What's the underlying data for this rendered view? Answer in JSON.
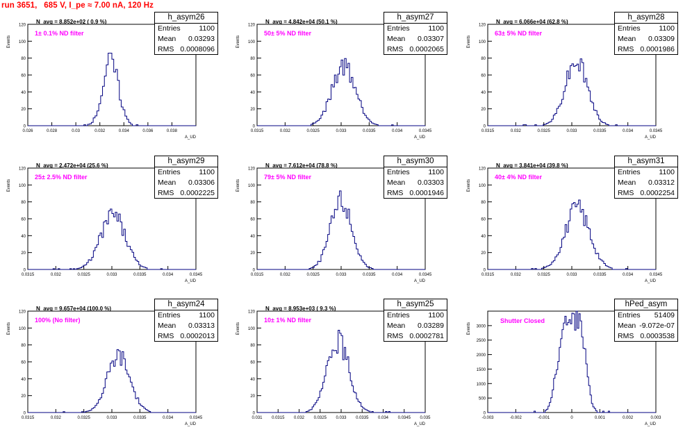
{
  "header": {
    "run_title": "run 3651,   685 V, I_pe ≈ 7.00 nA, 120 Hz"
  },
  "axis_labels": {
    "ylabel": "Events",
    "xlabel": "A_UD"
  },
  "colors": {
    "histogram": "#000080",
    "filter_text": "#ff00ff",
    "title_text": "#ff0000"
  },
  "chart_data": [
    {
      "type": "bar",
      "name": "h_asym26",
      "entries": "1100",
      "mean": "0.03293",
      "rms": "0.0008096",
      "n_avg": "N_avg = 8.852e+02 ( 0.9 %)",
      "filter": "1± 0.1% ND filter",
      "xlim": [
        0.026,
        0.04
      ],
      "ylim": [
        0,
        120
      ],
      "x_ticks": [
        "0.026",
        "0.028",
        "0.03",
        "0.032",
        "0.034",
        "0.036",
        "0.038"
      ],
      "y_ticks": [
        "0",
        "20",
        "40",
        "60",
        "80",
        "100",
        "120"
      ],
      "peak_x": 0.0329,
      "sigma": 0.00065,
      "peak_y": 77,
      "bins": 90,
      "seed": 26
    },
    {
      "type": "bar",
      "name": "h_asym27",
      "entries": "1100",
      "mean": "0.03307",
      "rms": "0.0002065",
      "n_avg": "N_avg = 4.842e+04 (50.1 %)",
      "filter": "50± 5% ND filter",
      "xlim": [
        0.0315,
        0.0345
      ],
      "ylim": [
        0,
        120
      ],
      "x_ticks": [
        "0.0315",
        "0.032",
        "0.0325",
        "0.033",
        "0.0335",
        "0.034",
        "0.0345"
      ],
      "y_ticks": [
        "0",
        "20",
        "40",
        "60",
        "80",
        "100",
        "120"
      ],
      "peak_x": 0.03305,
      "sigma": 0.00021,
      "peak_y": 70,
      "bins": 100,
      "seed": 27
    },
    {
      "type": "bar",
      "name": "h_asym28",
      "entries": "1100",
      "mean": "0.03309",
      "rms": "0.0001986",
      "n_avg": "N_avg = 6.066e+04 (62.8 %)",
      "filter": "63± 5% ND filter",
      "xlim": [
        0.0315,
        0.0345
      ],
      "ylim": [
        0,
        120
      ],
      "x_ticks": [
        "0.0315",
        "0.032",
        "0.0325",
        "0.033",
        "0.0335",
        "0.034",
        "0.0345"
      ],
      "y_ticks": [
        "0",
        "20",
        "40",
        "60",
        "80",
        "100",
        "120"
      ],
      "peak_x": 0.03308,
      "sigma": 0.0002,
      "peak_y": 76,
      "bins": 100,
      "seed": 28
    },
    {
      "type": "bar",
      "name": "h_asym29",
      "entries": "1100",
      "mean": "0.03306",
      "rms": "0.0002225",
      "n_avg": "N_avg = 2.472e+04 (25.6 %)",
      "filter": "25± 2.5% ND filter",
      "xlim": [
        0.0315,
        0.0345
      ],
      "ylim": [
        0,
        120
      ],
      "x_ticks": [
        "0.0315",
        "0.032",
        "0.0325",
        "0.033",
        "0.0335",
        "0.034",
        "0.0345"
      ],
      "y_ticks": [
        "0",
        "20",
        "40",
        "60",
        "80",
        "100",
        "120"
      ],
      "peak_x": 0.03302,
      "sigma": 0.00022,
      "peak_y": 64,
      "bins": 100,
      "seed": 29
    },
    {
      "type": "bar",
      "name": "h_asym30",
      "entries": "1100",
      "mean": "0.03303",
      "rms": "0.0001946",
      "n_avg": "N_avg = 7.612e+04 (78.8 %)",
      "filter": "79± 5% ND filter",
      "xlim": [
        0.0315,
        0.0345
      ],
      "ylim": [
        0,
        120
      ],
      "x_ticks": [
        "0.0315",
        "0.032",
        "0.0325",
        "0.033",
        "0.0335",
        "0.034",
        "0.0345"
      ],
      "y_ticks": [
        "0",
        "20",
        "40",
        "60",
        "80",
        "100",
        "120"
      ],
      "peak_x": 0.033,
      "sigma": 0.00019,
      "peak_y": 80,
      "bins": 100,
      "seed": 30
    },
    {
      "type": "bar",
      "name": "h_asym31",
      "entries": "1100",
      "mean": "0.03312",
      "rms": "0.0002254",
      "n_avg": "N_avg = 3.841e+04 (39.8 %)",
      "filter": "40± 4% ND filter",
      "xlim": [
        0.0315,
        0.0345
      ],
      "ylim": [
        0,
        120
      ],
      "x_ticks": [
        "0.0315",
        "0.032",
        "0.0325",
        "0.033",
        "0.0335",
        "0.034",
        "0.0345"
      ],
      "y_ticks": [
        "0",
        "20",
        "40",
        "60",
        "80",
        "100",
        "120"
      ],
      "peak_x": 0.0331,
      "sigma": 0.00022,
      "peak_y": 72,
      "bins": 100,
      "seed": 31
    },
    {
      "type": "bar",
      "name": "h_asym24",
      "entries": "1100",
      "mean": "0.03313",
      "rms": "0.0002013",
      "n_avg": "N_avg = 9.657e+04 (100.0 %)",
      "filter": "100% (No filter)",
      "xlim": [
        0.0315,
        0.0345
      ],
      "ylim": [
        0,
        120
      ],
      "x_ticks": [
        "0.0315",
        "0.032",
        "0.0325",
        "0.033",
        "0.0335",
        "0.034",
        "0.0345"
      ],
      "y_ticks": [
        "0",
        "20",
        "40",
        "60",
        "80",
        "100",
        "120"
      ],
      "peak_x": 0.03312,
      "sigma": 0.0002,
      "peak_y": 67,
      "bins": 100,
      "seed": 24
    },
    {
      "type": "bar",
      "name": "h_asym25",
      "entries": "1100",
      "mean": "0.03289",
      "rms": "0.0002781",
      "n_avg": "N_avg = 8.953e+03 ( 9.3 %)",
      "filter": "10± 1% ND filter",
      "xlim": [
        0.031,
        0.035
      ],
      "ylim": [
        0,
        120
      ],
      "x_ticks": [
        "0.031",
        "0.0315",
        "0.032",
        "0.0325",
        "0.033",
        "0.0335",
        "0.034",
        "0.0345",
        "0.035"
      ],
      "y_ticks": [
        "0",
        "20",
        "40",
        "60",
        "80",
        "100",
        "120"
      ],
      "peak_x": 0.03293,
      "sigma": 0.00026,
      "peak_y": 84,
      "bins": 110,
      "seed": 25
    },
    {
      "type": "bar",
      "name": "hPed_asym",
      "entries": "51409",
      "mean": "-9.072e-07",
      "rms": "0.0003538",
      "n_avg": "",
      "filter": "Shutter Closed",
      "xlim": [
        -0.003,
        0.003
      ],
      "ylim": [
        0,
        3500
      ],
      "x_ticks": [
        "-0.003",
        "-0.002",
        "-0.001",
        "0",
        "0.001",
        "0.002",
        "0.003"
      ],
      "y_ticks": [
        "0",
        "500",
        "1000",
        "1500",
        "2000",
        "2500",
        "3000"
      ],
      "bimodal": true,
      "peak_y": 3250,
      "bins": 120,
      "seed": 99
    }
  ]
}
